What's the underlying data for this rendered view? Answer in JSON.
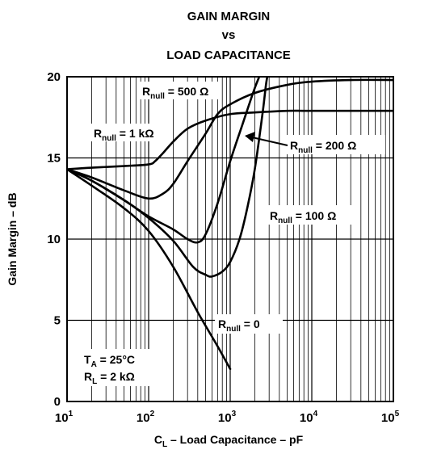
{
  "chart_data": {
    "type": "line",
    "title_lines": [
      "GAIN MARGIN",
      "vs",
      "LOAD CAPACITANCE"
    ],
    "xlabel": {
      "pre": "C",
      "sub": "L",
      "post": " – Load Capacitance – pF"
    },
    "ylabel": "Gain Margin – dB",
    "x_scale": "log",
    "xlim": [
      10,
      100000
    ],
    "ylim": [
      0,
      20
    ],
    "grid": true,
    "x_ticks": [
      {
        "base": "10",
        "exp": "1",
        "value": 10
      },
      {
        "base": "10",
        "exp": "2",
        "value": 100
      },
      {
        "base": "10",
        "exp": "3",
        "value": 1000
      },
      {
        "base": "10",
        "exp": "4",
        "value": 10000
      },
      {
        "base": "10",
        "exp": "5",
        "value": 100000
      }
    ],
    "y_ticks": [
      {
        "label": "0",
        "value": 0
      },
      {
        "label": "5",
        "value": 5
      },
      {
        "label": "10",
        "value": 10
      },
      {
        "label": "15",
        "value": 15
      },
      {
        "label": "20",
        "value": 20
      }
    ],
    "series": [
      {
        "label": {
          "pre": "R",
          "sub": "null",
          "post": " = 0"
        },
        "x": [
          10,
          20,
          50,
          100,
          200,
          400,
          700,
          1000
        ],
        "y": [
          14.3,
          13.3,
          11.9,
          10.5,
          8.3,
          5.5,
          3.4,
          2.0
        ]
      },
      {
        "label": {
          "pre": "R",
          "sub": "null",
          "post": " = 100 Ω"
        },
        "x": [
          10,
          20,
          50,
          100,
          200,
          350,
          500,
          600,
          800,
          1000,
          1300,
          1600,
          2000,
          2500,
          2800,
          3200
        ],
        "y": [
          14.3,
          13.6,
          12.4,
          11.3,
          9.9,
          8.3,
          7.8,
          7.7,
          8.0,
          8.6,
          10.0,
          11.8,
          14.3,
          17.8,
          19.8,
          21.0
        ]
      },
      {
        "label": {
          "pre": "R",
          "sub": "null",
          "post": " = 200 Ω"
        },
        "x": [
          10,
          20,
          50,
          100,
          200,
          300,
          400,
          500,
          700,
          1000,
          1400,
          2000,
          2600
        ],
        "y": [
          14.3,
          13.6,
          12.4,
          11.4,
          10.6,
          10.0,
          9.8,
          10.3,
          12.2,
          14.8,
          17.0,
          19.3,
          20.7
        ]
      },
      {
        "label": {
          "pre": "R",
          "sub": "null",
          "post": " = 500 Ω"
        },
        "x": [
          10,
          20,
          50,
          100,
          150,
          200,
          300,
          500,
          700,
          1000,
          2000,
          5000,
          10000,
          30000,
          100000
        ],
        "y": [
          14.3,
          13.8,
          13.0,
          12.5,
          12.8,
          13.4,
          14.8,
          16.5,
          17.7,
          18.3,
          19.0,
          19.5,
          19.7,
          19.8,
          19.8
        ]
      },
      {
        "label": {
          "pre": "R",
          "sub": "null",
          "post": " = 1 kΩ"
        },
        "x": [
          10,
          20,
          50,
          100,
          120,
          150,
          200,
          300,
          500,
          1000,
          2000,
          5000,
          10000,
          100000
        ],
        "y": [
          14.3,
          14.4,
          14.5,
          14.6,
          14.8,
          15.3,
          16.0,
          16.8,
          17.3,
          17.7,
          17.8,
          17.9,
          17.9,
          17.9
        ]
      }
    ],
    "conditions": [
      {
        "pre": "T",
        "sub": "A",
        "post": " = 25°C"
      },
      {
        "pre": "R",
        "sub": "L",
        "post": " = 2 kΩ"
      }
    ]
  }
}
